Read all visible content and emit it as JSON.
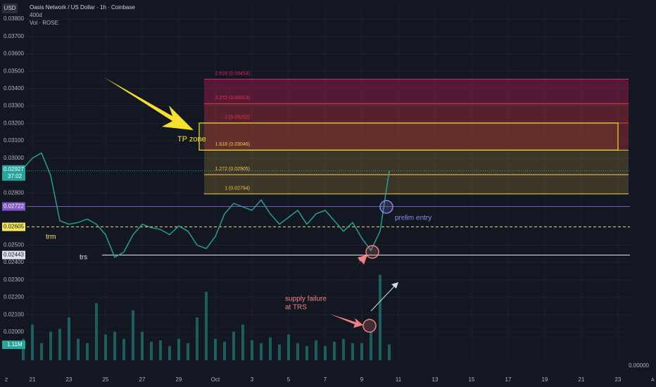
{
  "chart_data": {
    "type": "line",
    "title": "Oasis Network / US Dollar · 1h · Coinbase",
    "subtitle": "400d",
    "volume_title": "Vol · ROSE",
    "currency": "USD",
    "ylim": [
      0.01838,
      0.03889
    ],
    "yticks": [
      {
        "value": 0.038,
        "label": "0.03800"
      },
      {
        "value": 0.037,
        "label": "0.03700"
      },
      {
        "value": 0.036,
        "label": "0.03600"
      },
      {
        "value": 0.035,
        "label": "0.03500"
      },
      {
        "value": 0.034,
        "label": "0.03400"
      },
      {
        "value": 0.033,
        "label": "0.03300"
      },
      {
        "value": 0.032,
        "label": "0.03200"
      },
      {
        "value": 0.031,
        "label": "0.03100"
      },
      {
        "value": 0.03,
        "label": "0.03000"
      },
      {
        "value": 0.028,
        "label": "0.02800"
      },
      {
        "value": 0.025,
        "label": "0.02500"
      },
      {
        "value": 0.024,
        "label": "0.02400"
      },
      {
        "value": 0.023,
        "label": "0.02300"
      },
      {
        "value": 0.022,
        "label": "0.02200"
      },
      {
        "value": 0.021,
        "label": "0.02100"
      },
      {
        "value": 0.02,
        "label": "0.02000"
      }
    ],
    "x_labels": [
      "21",
      "23",
      "25",
      "27",
      "29",
      "Oct",
      "3",
      "5",
      "7",
      "9",
      "11",
      "13",
      "15",
      "17",
      "19",
      "21",
      "23"
    ],
    "series": [
      {
        "name": "ROSEUSD",
        "color": "#26a69a",
        "values": [
          0.0294,
          0.03,
          0.0303,
          0.029,
          0.0264,
          0.0262,
          0.0263,
          0.0265,
          0.0262,
          0.0256,
          0.0243,
          0.0246,
          0.0256,
          0.0262,
          0.026,
          0.0259,
          0.0256,
          0.0261,
          0.0258,
          0.025,
          0.0248,
          0.0255,
          0.0268,
          0.0274,
          0.0272,
          0.027,
          0.0276,
          0.0268,
          0.0262,
          0.0266,
          0.027,
          0.0262,
          0.0268,
          0.027,
          0.0264,
          0.0258,
          0.0263,
          0.0254,
          0.0247,
          0.0258,
          0.02927
        ]
      }
    ],
    "volume": {
      "ylim": [
        0,
        25
      ],
      "color": "#26a69a",
      "values": [
        1.5,
        2.5,
        1.2,
        2,
        2.2,
        3,
        1.5,
        1.2,
        4,
        1.8,
        2,
        1.5,
        3.5,
        2,
        1.3,
        1.4,
        1,
        1.5,
        1.2,
        3,
        4.8,
        1.5,
        1.3,
        2,
        2.5,
        1.4,
        1.2,
        1.6,
        1.1,
        1.8,
        1.2,
        1,
        1.4,
        1,
        1.3,
        1.5,
        1.2,
        1.2,
        2,
        6,
        1.11
      ],
      "last_label": "1.11M",
      "axis_label": "0.00000"
    },
    "last_price": {
      "value": 0.02927,
      "label": "0.02927",
      "countdown": "37:02",
      "color": "#26a69a"
    },
    "levels": [
      {
        "value": 0.02722,
        "label": "0.02722",
        "color": "#7e57c2"
      },
      {
        "value": 0.02605,
        "label": "0.02605",
        "color": "#f5e663"
      },
      {
        "value": 0.02443,
        "label": "0.02443",
        "color": "#e0e3eb"
      }
    ],
    "fib": [
      {
        "value": 0.03454,
        "label": "2.618 (0.03454)",
        "color": "#e91e63"
      },
      {
        "value": 0.03313,
        "label": "2.272 (0.03313)",
        "color": "#f23645"
      },
      {
        "value": 0.03202,
        "label": "2 (0.03202)",
        "color": "#f23645"
      },
      {
        "value": 0.03046,
        "label": "1.618 (0.03046)",
        "color": "#f7c548"
      },
      {
        "value": 0.02905,
        "label": "1.272 (0.02905)",
        "color": "#f7c548"
      },
      {
        "value": 0.02794,
        "label": "1 (0.02794)",
        "color": "#f7c548"
      }
    ],
    "annotations": {
      "tp_zone": "TP zone",
      "trm": "trm",
      "trs": "trs",
      "prelim_entry": "prelim entry",
      "supply_1": "supply failure",
      "supply_2": "at TRS",
      "left_corner": "Z",
      "right_corner": "A"
    }
  }
}
